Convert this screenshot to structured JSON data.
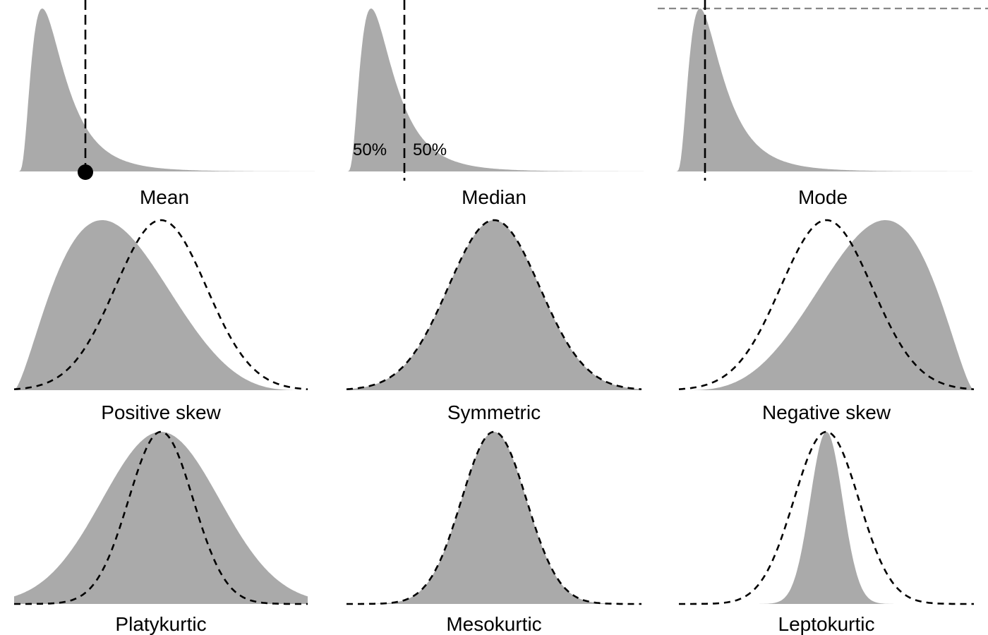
{
  "panels": [
    {
      "caption": "Mean",
      "shape": "lognormal",
      "marker": "mean"
    },
    {
      "caption": "Median",
      "shape": "lognormal",
      "marker": "median",
      "left_percent": "50%",
      "right_percent": "50%"
    },
    {
      "caption": "Mode",
      "shape": "lognormal",
      "marker": "mode"
    },
    {
      "caption": "Positive skew",
      "shape": "positive-skew",
      "reference": "normal-shifted"
    },
    {
      "caption": "Symmetric",
      "shape": "normal",
      "reference": "normal"
    },
    {
      "caption": "Negative skew",
      "shape": "negative-skew",
      "reference": "normal-shifted"
    },
    {
      "caption": "Platykurtic",
      "shape": "wide-normal",
      "reference": "normal"
    },
    {
      "caption": "Mesokurtic",
      "shape": "normal",
      "reference": "normal"
    },
    {
      "caption": "Leptokurtic",
      "shape": "narrow-normal",
      "reference": "normal"
    }
  ],
  "colors": {
    "fill": "#aaaaaa",
    "line": "#000000",
    "mode_guide": "#888888",
    "background": "#ffffff"
  }
}
